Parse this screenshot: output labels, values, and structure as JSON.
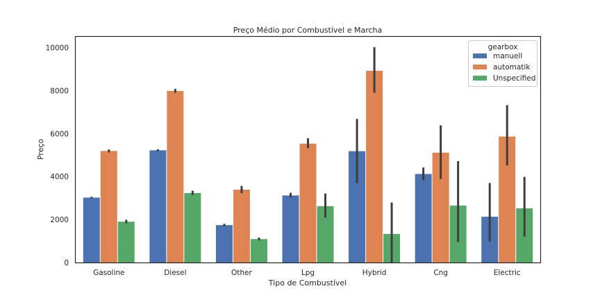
{
  "chart_data": {
    "type": "bar",
    "title": "Preço Médio por Combustível e Marcha",
    "xlabel": "Tipo de Combustível",
    "ylabel": "Preço",
    "ylim": [
      0,
      10500
    ],
    "yticks": [
      0,
      2000,
      4000,
      6000,
      8000,
      10000
    ],
    "grid": false,
    "legend_title": "gearbox",
    "legend_position": "top-right",
    "categories": [
      "Gasoline",
      "Diesel",
      "Other",
      "Lpg",
      "Hybrid",
      "Cng",
      "Electric"
    ],
    "series": [
      {
        "name": "manuell",
        "color": "#4c72b0",
        "values": [
          3020,
          5220,
          1740,
          3120,
          5180,
          4120,
          2130
        ],
        "ci": [
          [
            2980,
            3060
          ],
          [
            5170,
            5270
          ],
          [
            1680,
            1800
          ],
          [
            3020,
            3240
          ],
          [
            3700,
            6680
          ],
          [
            3820,
            4420
          ],
          [
            980,
            3700
          ]
        ]
      },
      {
        "name": "automatik",
        "color": "#dd8452",
        "values": [
          5190,
          7980,
          3390,
          5530,
          8920,
          5110,
          5860
        ],
        "ci": [
          [
            5120,
            5260
          ],
          [
            7900,
            8080
          ],
          [
            3230,
            3560
          ],
          [
            5320,
            5780
          ],
          [
            7900,
            10020
          ],
          [
            3890,
            6380
          ],
          [
            4520,
            7320
          ]
        ]
      },
      {
        "name": "Unspecified",
        "color": "#55a868",
        "values": [
          1900,
          3230,
          1090,
          2620,
          1330,
          2650,
          2520
        ],
        "ci": [
          [
            1820,
            1990
          ],
          [
            3140,
            3340
          ],
          [
            1030,
            1160
          ],
          [
            2090,
            3210
          ],
          [
            0,
            2790
          ],
          [
            950,
            4720
          ],
          [
            1200,
            3980
          ]
        ]
      }
    ]
  }
}
